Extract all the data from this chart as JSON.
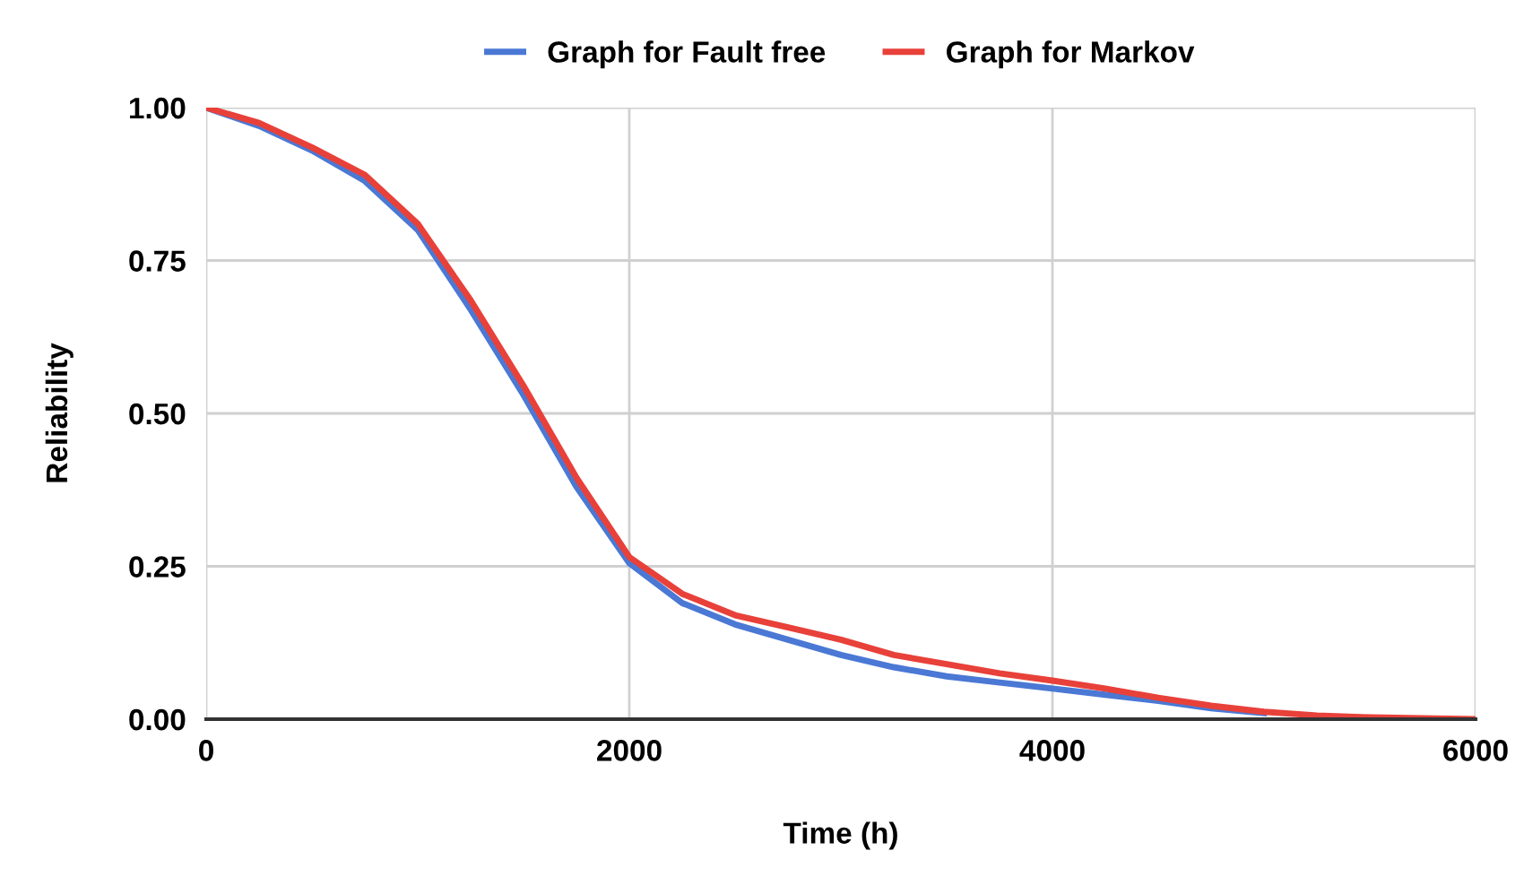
{
  "chart_data": {
    "type": "line",
    "xlabel": "Time (h)",
    "ylabel": "Reliability",
    "x": [
      0,
      250,
      500,
      750,
      1000,
      1250,
      1500,
      1750,
      2000,
      2250,
      2500,
      2750,
      3000,
      3250,
      3500,
      3750,
      4000,
      4250,
      4500,
      4750,
      5000,
      5250,
      5500,
      6000
    ],
    "series": [
      {
        "name": "Graph for Fault free",
        "color": "#4a78d4",
        "values": [
          1.0,
          0.97,
          0.93,
          0.88,
          0.8,
          0.67,
          0.53,
          0.38,
          0.255,
          0.19,
          0.155,
          0.13,
          0.105,
          0.085,
          0.07,
          0.06,
          0.05,
          0.04,
          0.03,
          0.018,
          0.01,
          null,
          null,
          null
        ]
      },
      {
        "name": "Graph for Markov",
        "color": "#e8413a",
        "values": [
          1.0,
          0.975,
          0.935,
          0.89,
          0.81,
          0.685,
          0.545,
          0.395,
          0.265,
          0.205,
          0.17,
          0.15,
          0.13,
          0.105,
          0.09,
          0.075,
          0.063,
          0.05,
          0.035,
          0.022,
          0.012,
          0.006,
          0.003,
          0
        ]
      }
    ],
    "xlim": [
      0,
      6000
    ],
    "xticks": [
      0,
      2000,
      4000,
      6000
    ],
    "ylim": [
      0,
      1.0
    ],
    "yticks": [
      {
        "value": 0,
        "label": "0.00"
      },
      {
        "value": 0.25,
        "label": "0.25"
      },
      {
        "value": 0.5,
        "label": "0.50"
      },
      {
        "value": 0.75,
        "label": "0.75"
      },
      {
        "value": 1.0,
        "label": "1.00"
      }
    ],
    "grid": true,
    "legend": "top",
    "marker": "none",
    "line_style": "solid"
  }
}
